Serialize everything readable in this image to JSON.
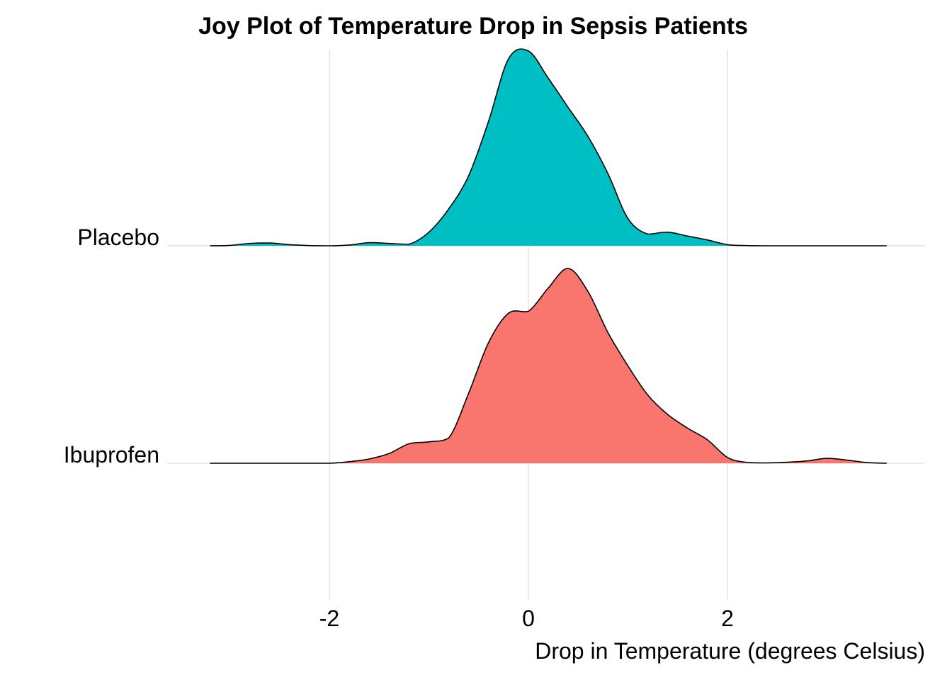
{
  "chart_data": {
    "type": "ridgeline",
    "title": "Joy Plot of Temperature Drop in Sepsis Patients",
    "xlabel": "Drop in Temperature (degrees Celsius)",
    "ylabel": "",
    "xlim": [
      -3.3,
      3.75
    ],
    "x_ticks": [
      "-2",
      "0",
      "2"
    ],
    "x_tick_values": [
      -2,
      0,
      2
    ],
    "grid": true,
    "legend": "none",
    "x": [
      -3.2,
      -3.0,
      -2.8,
      -2.6,
      -2.4,
      -2.2,
      -2.0,
      -1.8,
      -1.6,
      -1.4,
      -1.2,
      -1.0,
      -0.8,
      -0.6,
      -0.4,
      -0.2,
      0.0,
      0.2,
      0.4,
      0.6,
      0.8,
      1.0,
      1.2,
      1.4,
      1.6,
      1.8,
      2.0,
      2.2,
      2.4,
      2.6,
      2.8,
      3.0,
      3.2,
      3.4,
      3.6
    ],
    "series": [
      {
        "name": "Placebo",
        "color": "#00BFC4",
        "values": [
          0.0,
          0.002,
          0.012,
          0.014,
          0.006,
          0.001,
          0.0,
          0.004,
          0.016,
          0.012,
          0.008,
          0.07,
          0.19,
          0.36,
          0.64,
          0.96,
          1.0,
          0.86,
          0.71,
          0.56,
          0.37,
          0.14,
          0.06,
          0.07,
          0.05,
          0.03,
          0.006,
          0.001,
          0.0,
          0.0,
          0.0,
          0.0,
          0.0,
          0.0,
          0.0
        ]
      },
      {
        "name": "Ibuprofen",
        "color": "#F8766D",
        "values": [
          0.0,
          0.0,
          0.0,
          0.0,
          0.0,
          0.0,
          0.0,
          0.008,
          0.022,
          0.05,
          0.1,
          0.11,
          0.13,
          0.36,
          0.62,
          0.77,
          0.78,
          0.9,
          1.0,
          0.88,
          0.67,
          0.5,
          0.35,
          0.25,
          0.18,
          0.12,
          0.03,
          0.004,
          0.002,
          0.005,
          0.012,
          0.025,
          0.016,
          0.004,
          0.0
        ]
      }
    ]
  }
}
